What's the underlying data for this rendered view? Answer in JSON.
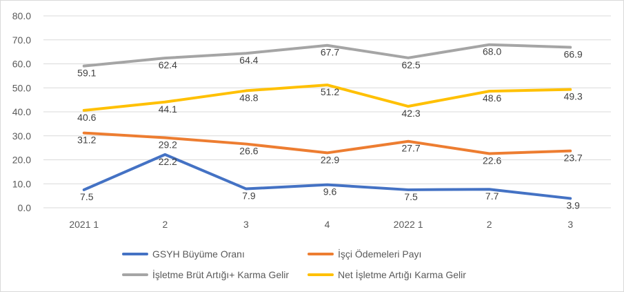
{
  "chart_data": {
    "type": "line",
    "categories": [
      "2021 1",
      "2",
      "3",
      "4",
      "2022 1",
      "2",
      "3"
    ],
    "ylim": [
      0,
      80
    ],
    "yticks": [
      "0.0",
      "10.0",
      "20.0",
      "30.0",
      "40.0",
      "50.0",
      "60.0",
      "70.0",
      "80.0"
    ],
    "grid": true,
    "legend_position": "bottom",
    "series": [
      {
        "name": "GSYH Büyüme Oranı",
        "color": "#4472c4",
        "values": [
          7.5,
          22.2,
          7.9,
          9.6,
          7.5,
          7.7,
          3.9
        ],
        "labels": [
          "7.5",
          "22.2",
          "7.9",
          "9.6",
          "7.5",
          "7.7",
          "3.9"
        ]
      },
      {
        "name": "İşçi Ödemeleri Payı",
        "color": "#ed7d31",
        "values": [
          31.2,
          29.2,
          26.6,
          22.9,
          27.7,
          22.6,
          23.7
        ],
        "labels": [
          "31.2",
          "29.2",
          "26.6",
          "22.9",
          "27.7",
          "22.6",
          "23.7"
        ]
      },
      {
        "name": "İşletme Brüt Artığı+ Karma Gelir",
        "color": "#a5a5a5",
        "values": [
          59.1,
          62.4,
          64.4,
          67.7,
          62.5,
          68.0,
          66.9
        ],
        "labels": [
          "59.1",
          "62.4",
          "64.4",
          "67.7",
          "62.5",
          "68.0",
          "66.9"
        ]
      },
      {
        "name": "Net İşletme Artığı Karma Gelir",
        "color": "#ffc000",
        "values": [
          40.6,
          44.1,
          48.8,
          51.2,
          42.3,
          48.6,
          49.3
        ],
        "labels": [
          "40.6",
          "44.1",
          "48.8",
          "51.2",
          "42.3",
          "48.6",
          "49.3"
        ]
      }
    ]
  }
}
